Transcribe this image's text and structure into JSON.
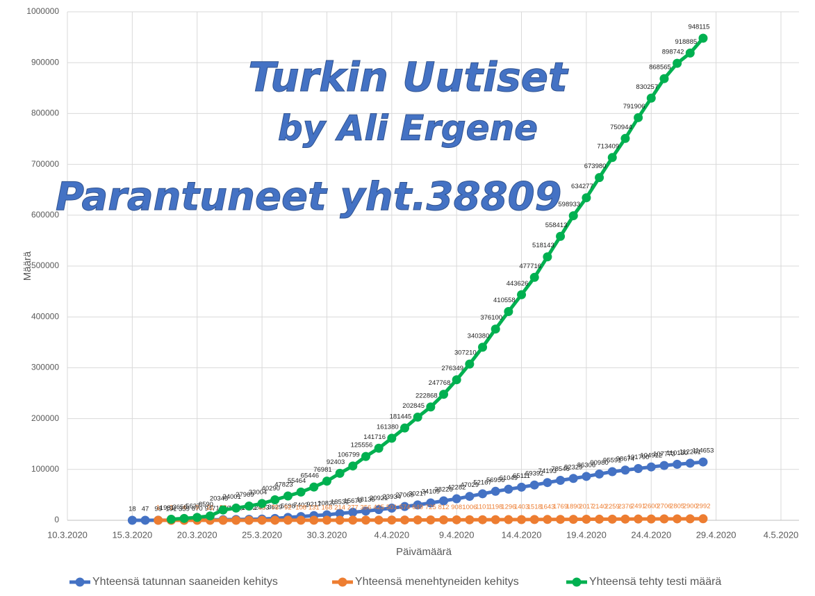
{
  "chart_data": {
    "type": "line",
    "annotations": [
      "Turkin Uutiset",
      "by Ali Ergene",
      "Parantuneet yht.38809"
    ],
    "y_label": "Määrä",
    "x_label": "Päivämäärä",
    "x": [
      "15.3.2020",
      "16.3.2020",
      "17.3.2020",
      "18.3.2020",
      "19.3.2020",
      "20.3.2020",
      "21.3.2020",
      "22.3.2020",
      "23.3.2020",
      "24.3.2020",
      "25.3.2020",
      "26.3.2020",
      "27.3.2020",
      "28.3.2020",
      "29.3.2020",
      "30.3.2020",
      "31.3.2020",
      "1.4.2020",
      "2.4.2020",
      "3.4.2020",
      "4.4.2020",
      "5.4.2020",
      "6.4.2020",
      "7.4.2020",
      "8.4.2020",
      "9.4.2020",
      "10.4.2020",
      "11.4.2020",
      "12.4.2020",
      "13.4.2020",
      "14.4.2020",
      "15.4.2020",
      "16.4.2020",
      "17.4.2020",
      "18.4.2020",
      "19.4.2020",
      "20.4.2020",
      "21.4.2020",
      "22.4.2020",
      "23.4.2020",
      "24.4.2020",
      "25.4.2020",
      "26.4.2020",
      "27.4.2020",
      "28.4.2020"
    ],
    "series": [
      {
        "name": "Yhteensä tatunnan saaneiden kehitys",
        "color": "#4472c4",
        "values": [
          18,
          47,
          98,
          191,
          359,
          670,
          947,
          1236,
          1529,
          1872,
          2433,
          3629,
          5698,
          7402,
          9217,
          10827,
          13531,
          15679,
          18135,
          20921,
          23934,
          27069,
          30217,
          34109,
          38226,
          42282,
          47029,
          52167,
          56956,
          61049,
          65111,
          69392,
          74193,
          78546,
          82329,
          86306,
          90980,
          95591,
          98674,
          101790,
          104912,
          107773,
          110130,
          112261,
          114653
        ]
      },
      {
        "name": "Yhteensä menehtyneiden kehitys",
        "color": "#ed7d31",
        "values": [
          null,
          null,
          1,
          2,
          4,
          9,
          21,
          30,
          37,
          44,
          59,
          75,
          92,
          108,
          131,
          168,
          214,
          277,
          356,
          425,
          501,
          574,
          649,
          725,
          812,
          908,
          1006,
          1101,
          1198,
          1296,
          1403,
          1518,
          1643,
          1769,
          1890,
          2017,
          2140,
          2259,
          2376,
          2491,
          2600,
          2706,
          2805,
          2900,
          2992
        ]
      },
      {
        "name": "Yhteensä tehty testi määrä",
        "color": "#00b050",
        "values": [
          null,
          null,
          null,
          1981,
          3656,
          5637,
          8590,
          20345,
          24001,
          27969,
          33004,
          40290,
          47823,
          55464,
          65446,
          76981,
          92403,
          106799,
          125556,
          141716,
          161380,
          181445,
          202845,
          222868,
          247768,
          276349,
          307210,
          340380,
          376100,
          410558,
          443626,
          477716,
          518143,
          558413,
          598933,
          634277,
          673980,
          713409,
          750944,
          791906,
          830257,
          868565,
          898742,
          918885,
          948115
        ]
      }
    ],
    "xlim": [
      "10.3.2020",
      "4.5.2020"
    ],
    "xticks": [
      "10.3.2020",
      "15.3.2020",
      "20.3.2020",
      "25.3.2020",
      "30.3.2020",
      "4.4.2020",
      "9.4.2020",
      "14.4.2020",
      "19.4.2020",
      "24.4.2020",
      "29.4.2020",
      "4.5.2020"
    ],
    "ylim": [
      0,
      1000000
    ],
    "yticks": [
      0,
      100000,
      200000,
      300000,
      400000,
      500000,
      600000,
      700000,
      800000,
      900000,
      1000000
    ],
    "grid": true,
    "legend": "bottom"
  }
}
